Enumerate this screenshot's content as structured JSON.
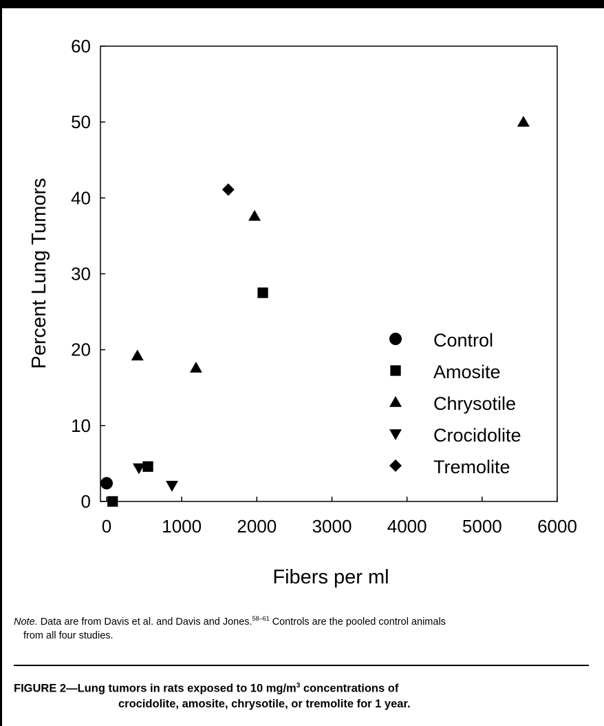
{
  "chart_data": {
    "type": "scatter",
    "xlabel": "Fibers per ml",
    "ylabel": "Percent Lung Tumors",
    "xlim": [
      0,
      6000
    ],
    "ylim": [
      0,
      60
    ],
    "x_ticks": [
      "0",
      "1000",
      "2000",
      "3000",
      "4000",
      "5000",
      "6000"
    ],
    "y_ticks": [
      "0",
      "10",
      "20",
      "30",
      "40",
      "50",
      "60"
    ],
    "legend_position": "inside-right",
    "grid": false,
    "series": [
      {
        "name": "Control",
        "marker": "circle",
        "points": [
          {
            "x": 0,
            "y": 2.4
          }
        ]
      },
      {
        "name": "Amosite",
        "marker": "square",
        "points": [
          {
            "x": 80,
            "y": 0
          },
          {
            "x": 550,
            "y": 4.6
          },
          {
            "x": 2080,
            "y": 27.5
          }
        ]
      },
      {
        "name": "Chrysotile",
        "marker": "triangle-up",
        "points": [
          {
            "x": 410,
            "y": 19.2
          },
          {
            "x": 1190,
            "y": 17.6
          },
          {
            "x": 1970,
            "y": 37.6
          },
          {
            "x": 5550,
            "y": 50
          }
        ]
      },
      {
        "name": "Crocidolite",
        "marker": "triangle-down",
        "points": [
          {
            "x": 430,
            "y": 4.4
          },
          {
            "x": 870,
            "y": 2.1
          }
        ]
      },
      {
        "name": "Tremolite",
        "marker": "diamond",
        "points": [
          {
            "x": 1620,
            "y": 41.1
          }
        ]
      }
    ]
  },
  "note": {
    "lead": "Note.",
    "first_line": " Data are from Davis et al. and Davis and Jones.",
    "superscript": "58–61",
    "first_line_end": " Controls are the pooled control animals",
    "second_line": "from all four studies."
  },
  "caption": {
    "line1_prefix": "FIGURE 2—Lung tumors in rats exposed to 10 mg/m",
    "superscript": "3",
    "line1_suffix": " concentrations of",
    "line2": "crocidolite, amosite, chrysotile, or tremolite for 1 year."
  }
}
